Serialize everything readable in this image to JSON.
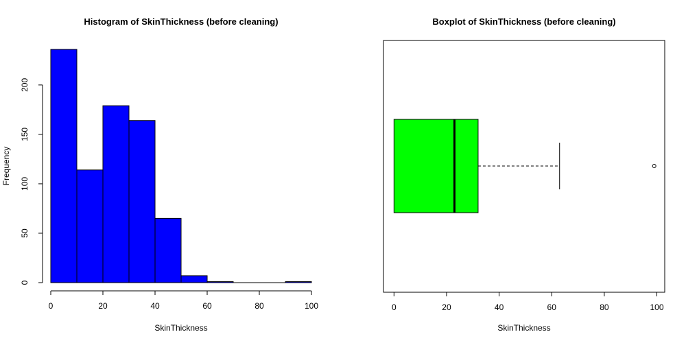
{
  "chart_data": [
    {
      "type": "bar",
      "title": "Histogram of SkinThickness (before cleaning)",
      "xlabel": "SkinThickness",
      "ylabel": "Frequency",
      "bins": [
        [
          0,
          10
        ],
        [
          10,
          20
        ],
        [
          20,
          30
        ],
        [
          30,
          40
        ],
        [
          40,
          50
        ],
        [
          50,
          60
        ],
        [
          60,
          70
        ],
        [
          70,
          80
        ],
        [
          80,
          90
        ],
        [
          90,
          100
        ]
      ],
      "values": [
        236,
        114,
        179,
        164,
        65,
        7,
        1,
        0,
        0,
        1
      ],
      "xlim": [
        0,
        100
      ],
      "ylim": [
        0,
        236
      ],
      "x_ticks": [
        0,
        20,
        40,
        60,
        80,
        100
      ],
      "y_ticks": [
        0,
        50,
        100,
        150,
        200
      ],
      "bar_color": "#0000ff",
      "grid": false
    },
    {
      "type": "boxplot",
      "orientation": "horizontal",
      "title": "Boxplot of SkinThickness (before cleaning)",
      "xlabel": "SkinThickness",
      "ylabel": "",
      "stats": {
        "whisker_low": 0,
        "q1": 0,
        "median": 23,
        "q3": 32,
        "whisker_high": 63
      },
      "outliers": [
        99
      ],
      "xlim": [
        -4,
        103
      ],
      "x_ticks": [
        0,
        20,
        40,
        60,
        80,
        100
      ],
      "box_color": "#00ff00",
      "grid": false
    }
  ]
}
